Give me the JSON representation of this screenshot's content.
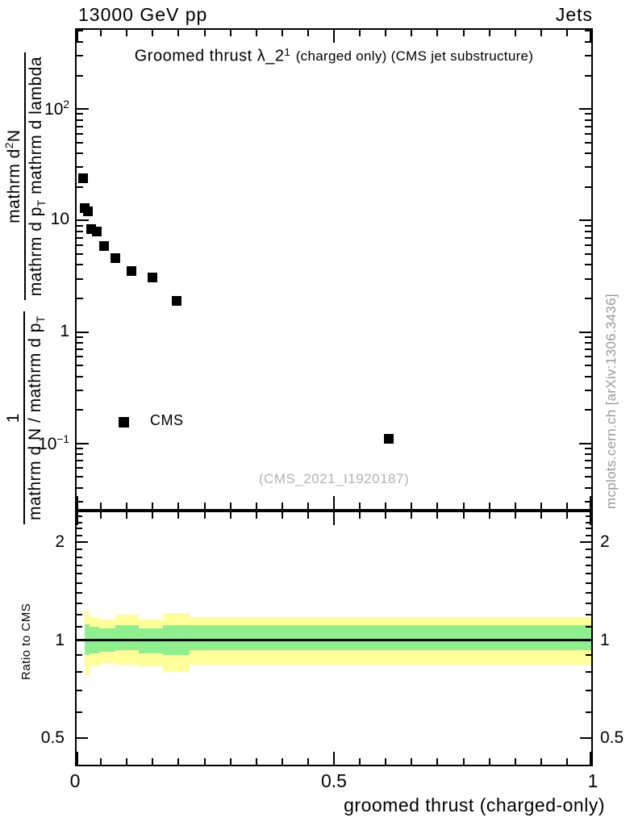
{
  "header": {
    "left": "13000 GeV pp",
    "right": "Jets"
  },
  "title": {
    "main": "Groomed thrust λ_2",
    "sup": "1",
    "note": "(charged only) (CMS jet substructure)"
  },
  "axes": {
    "x_label": "groomed thrust (charged-only)",
    "ratio_label": "Ratio to CMS",
    "y_label": {
      "frac1": {
        "num": "1",
        "den_main": "mathrm d N / mathrm d p",
        "den_sub": "T"
      },
      "frac2": {
        "num_main": "mathrm d",
        "num_sup": "2",
        "num_tail": "N",
        "den_main": "mathrm d p",
        "den_sub": "T",
        "den_tail": " mathrm d lambda"
      }
    }
  },
  "watermark": {
    "text": "(CMS_2021_I1920187)",
    "color": "#b2b2b2"
  },
  "side_note": {
    "text": "mcplots.cern.ch [arXiv:1306.3436]",
    "color": "#999999"
  },
  "legend": {
    "items": [
      {
        "label": "CMS",
        "marker": "filled-square",
        "marker_color": "#000000"
      }
    ]
  },
  "chart_data": {
    "type": "scatter",
    "title": "Groomed thrust λ_2^1 (charged only) (CMS jet substructure)",
    "header_left": "13000 GeV pp",
    "header_right": "Jets",
    "xlabel": "groomed thrust (charged-only)",
    "main_panel": {
      "yscale": "log",
      "xlim": [
        0,
        1
      ],
      "ylim": [
        0.025,
        530
      ],
      "xticks": [
        {
          "v": 0,
          "label": "0"
        },
        {
          "v": 0.5,
          "label": "0.5"
        },
        {
          "v": 1,
          "label": "1"
        }
      ],
      "x_minor_step": 0.05,
      "yticks": [
        {
          "v": 100,
          "base": "10",
          "exp": "2"
        },
        {
          "v": 10,
          "base": "10",
          "exp": ""
        },
        {
          "v": 1,
          "base": "1",
          "exp": ""
        },
        {
          "v": 0.1,
          "base": "10",
          "exp": "−1"
        }
      ],
      "series": [
        {
          "name": "CMS",
          "marker": "filled-square",
          "color": "#000000",
          "points": [
            [
              0.016,
              24.0
            ],
            [
              0.019,
              13.0
            ],
            [
              0.025,
              12.0
            ],
            [
              0.031,
              8.4
            ],
            [
              0.042,
              7.9
            ],
            [
              0.056,
              5.9
            ],
            [
              0.078,
              4.6
            ],
            [
              0.109,
              3.5
            ],
            [
              0.15,
              3.1
            ],
            [
              0.196,
              1.9
            ],
            [
              0.606,
              0.11
            ]
          ]
        }
      ]
    },
    "ratio_panel": {
      "yscale": "log",
      "ylim": [
        0.41,
        2.5
      ],
      "yticks": [
        {
          "v": 2,
          "label": "2"
        },
        {
          "v": 1,
          "label": "1"
        },
        {
          "v": 0.5,
          "label": "0.5"
        }
      ],
      "minor_tick_step": 0.1,
      "minor_tick_range": [
        0.5,
        2.5
      ],
      "reference_line": 1.0,
      "band_colors": {
        "outer": "#ffff99",
        "inner": "#8df08d",
        "line": "#000000"
      },
      "bands": [
        {
          "x0": 0.018,
          "x1": 0.028,
          "outer": [
            0.78,
            1.23
          ],
          "inner": [
            0.9,
            1.12
          ]
        },
        {
          "x0": 0.028,
          "x1": 0.047,
          "outer": [
            0.83,
            1.17
          ],
          "inner": [
            0.91,
            1.1
          ]
        },
        {
          "x0": 0.047,
          "x1": 0.078,
          "outer": [
            0.85,
            1.16
          ],
          "inner": [
            0.92,
            1.09
          ]
        },
        {
          "x0": 0.078,
          "x1": 0.123,
          "outer": [
            0.84,
            1.2
          ],
          "inner": [
            0.93,
            1.11
          ]
        },
        {
          "x0": 0.123,
          "x1": 0.17,
          "outer": [
            0.83,
            1.16
          ],
          "inner": [
            0.91,
            1.09
          ]
        },
        {
          "x0": 0.17,
          "x1": 0.221,
          "outer": [
            0.8,
            1.21
          ],
          "inner": [
            0.9,
            1.11
          ]
        },
        {
          "x0": 0.221,
          "x1": 1.0,
          "outer": [
            0.84,
            1.18
          ],
          "inner": [
            0.93,
            1.11
          ]
        }
      ]
    }
  }
}
